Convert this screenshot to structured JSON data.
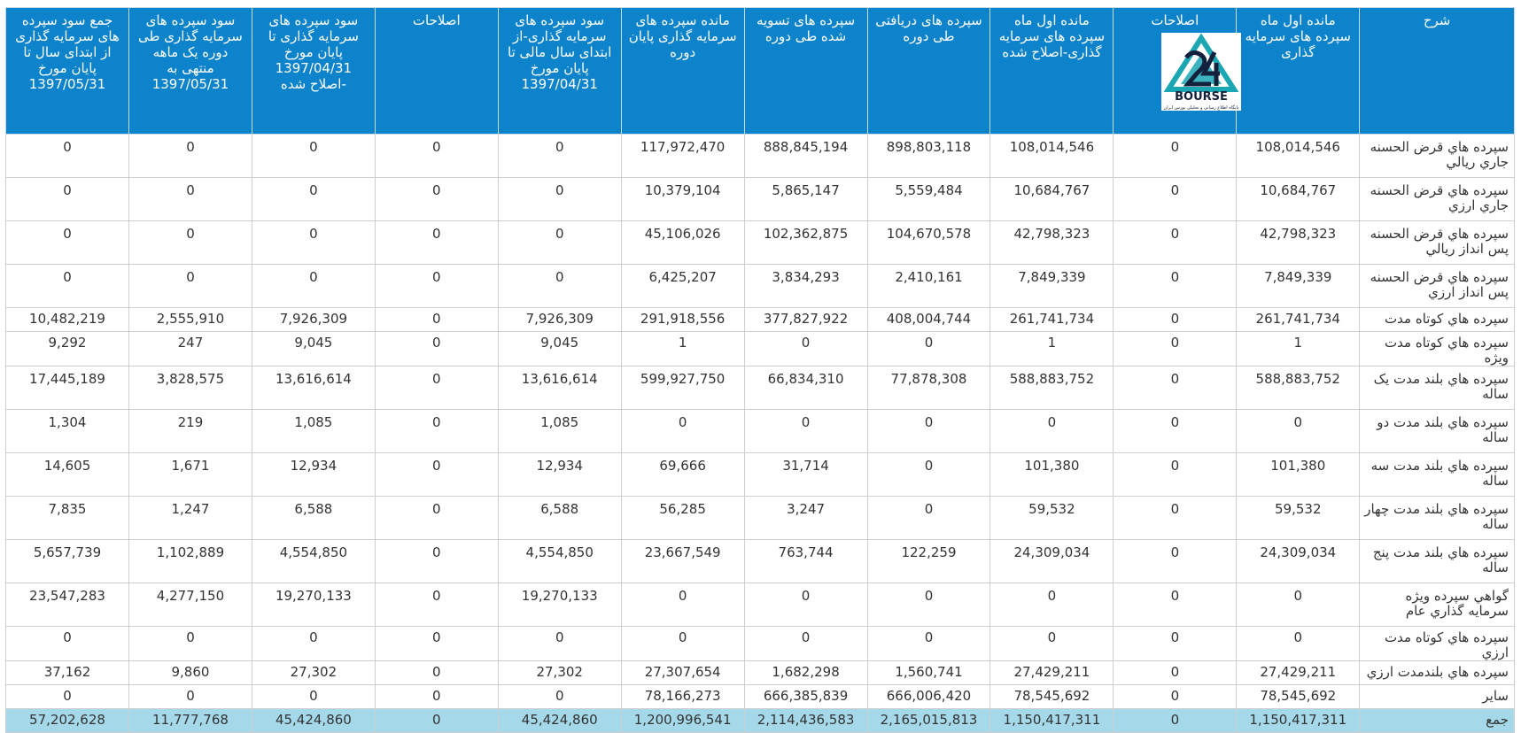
{
  "columns": [
    "شرح",
    "مانده اول ماه سپرده های سرمایه گذاری",
    "اصلاحات",
    "مانده اول ماه سپرده های سرمایه گذاری-اصلاح شده",
    "سپرده های دریافتی طی دوره",
    "سپرده های تسویه شده طی دوره",
    "مانده سپرده های سرمایه گذاری پایان دوره",
    "سود سپرده های سرمایه گذاری-از ابتدای سال مالی تا پایان مورخ 1397/04/31",
    "اصلاحات",
    "سود سپرده های سرمایه گذاری تا پایان مورخ 1397/04/31 -اصلاح شده",
    "سود سپرده های سرمایه گذاری طی دوره یک ماهه منتهی به 1397/05/31",
    "جمع سود سپرده های سرمایه گذاری از ابتدای سال تا پایان مورخ 1397/05/31"
  ],
  "logo": {
    "text": "BOURSE",
    "subtext": "پایگاه اطلاع رسانی و تحلیلی بورس ایران",
    "colors": {
      "teal": "#1ba6b4",
      "dark": "#14213d"
    }
  },
  "rows": [
    {
      "desc": "سپرده هاي قرض الحسنه جاري ريالي",
      "cells": [
        "108,014,546",
        "0",
        "108,014,546",
        "898,803,118",
        "888,845,194",
        "117,972,470",
        "0",
        "0",
        "0",
        "0",
        "0"
      ]
    },
    {
      "desc": "سپرده هاي قرض الحسنه جاري ارزي",
      "cells": [
        "10,684,767",
        "0",
        "10,684,767",
        "5,559,484",
        "5,865,147",
        "10,379,104",
        "0",
        "0",
        "0",
        "0",
        "0"
      ]
    },
    {
      "desc": "سپرده هاي قرض الحسنه پس انداز ريالي",
      "cells": [
        "42,798,323",
        "0",
        "42,798,323",
        "104,670,578",
        "102,362,875",
        "45,106,026",
        "0",
        "0",
        "0",
        "0",
        "0"
      ]
    },
    {
      "desc": "سپرده هاي قرض الحسنه پس انداز ارزي",
      "cells": [
        "7,849,339",
        "0",
        "7,849,339",
        "2,410,161",
        "3,834,293",
        "6,425,207",
        "0",
        "0",
        "0",
        "0",
        "0"
      ]
    },
    {
      "desc": "سپرده هاي کوتاه مدت",
      "short": true,
      "cells": [
        "261,741,734",
        "0",
        "261,741,734",
        "408,004,744",
        "377,827,922",
        "291,918,556",
        "7,926,309",
        "0",
        "7,926,309",
        "2,555,910",
        "10,482,219"
      ]
    },
    {
      "desc": "سپرده هاي کوتاه مدت ويژه",
      "short": true,
      "cells": [
        "1",
        "0",
        "1",
        "0",
        "0",
        "1",
        "9,045",
        "0",
        "9,045",
        "247",
        "9,292"
      ]
    },
    {
      "desc": "سپرده هاي بلند مدت يک ساله",
      "cells": [
        "588,883,752",
        "0",
        "588,883,752",
        "77,878,308",
        "66,834,310",
        "599,927,750",
        "13,616,614",
        "0",
        "13,616,614",
        "3,828,575",
        "17,445,189"
      ]
    },
    {
      "desc": "سپرده هاي بلند مدت دو ساله",
      "cells": [
        "0",
        "0",
        "0",
        "0",
        "0",
        "0",
        "1,085",
        "0",
        "1,085",
        "219",
        "1,304"
      ]
    },
    {
      "desc": "سپرده هاي بلند مدت سه ساله",
      "cells": [
        "101,380",
        "0",
        "101,380",
        "0",
        "31,714",
        "69,666",
        "12,934",
        "0",
        "12,934",
        "1,671",
        "14,605"
      ]
    },
    {
      "desc": "سپرده هاي بلند مدت چهار ساله",
      "cells": [
        "59,532",
        "0",
        "59,532",
        "0",
        "3,247",
        "56,285",
        "6,588",
        "0",
        "6,588",
        "1,247",
        "7,835"
      ]
    },
    {
      "desc": "سپرده هاي بلند مدت پنج ساله",
      "cells": [
        "24,309,034",
        "0",
        "24,309,034",
        "122,259",
        "763,744",
        "23,667,549",
        "4,554,850",
        "0",
        "4,554,850",
        "1,102,889",
        "5,657,739"
      ]
    },
    {
      "desc": "گواهي سپرده ويژه سرمايه گذاري عام",
      "cells": [
        "0",
        "0",
        "0",
        "0",
        "0",
        "0",
        "19,270,133",
        "0",
        "19,270,133",
        "4,277,150",
        "23,547,283"
      ]
    },
    {
      "desc": "سپرده هاي کوتاه مدت ارزي",
      "short": true,
      "cells": [
        "0",
        "0",
        "0",
        "0",
        "0",
        "0",
        "0",
        "0",
        "0",
        "0",
        "0"
      ]
    },
    {
      "desc": "سپرده هاي بلندمدت ارزي",
      "short": true,
      "cells": [
        "27,429,211",
        "0",
        "27,429,211",
        "1,560,741",
        "1,682,298",
        "27,307,654",
        "27,302",
        "0",
        "27,302",
        "9,860",
        "37,162"
      ]
    },
    {
      "desc": "ساير",
      "short": true,
      "cells": [
        "78,545,692",
        "0",
        "78,545,692",
        "666,006,420",
        "666,385,839",
        "78,166,273",
        "0",
        "0",
        "0",
        "0",
        "0"
      ]
    }
  ],
  "total": {
    "desc": "جمع",
    "cells": [
      "1,150,417,311",
      "0",
      "1,150,417,311",
      "2,165,015,813",
      "2,114,436,583",
      "1,200,996,541",
      "45,424,860",
      "0",
      "45,424,860",
      "11,777,768",
      "57,202,628"
    ]
  }
}
